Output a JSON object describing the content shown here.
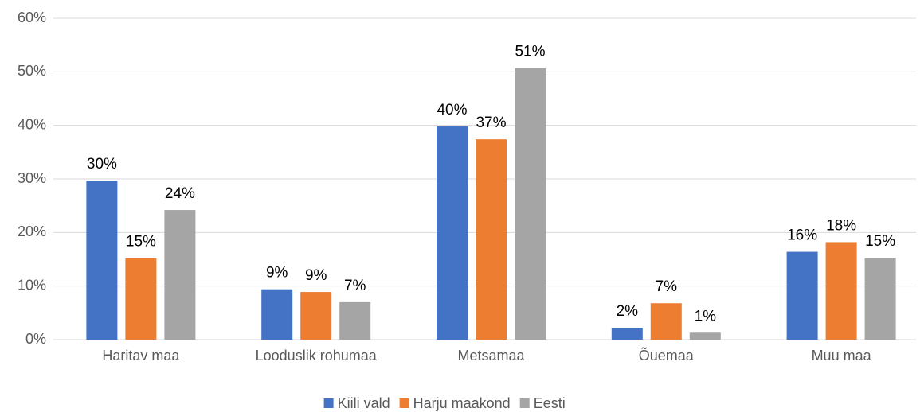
{
  "chart_data": {
    "type": "bar",
    "categories": [
      "Haritav maa",
      "Looduslik rohumaa",
      "Metsamaa",
      "Õuemaa",
      "Muu maa"
    ],
    "series": [
      {
        "name": "Kiili vald",
        "color": "#4472c4",
        "values": [
          29.7,
          9.4,
          39.8,
          2.2,
          16.4
        ],
        "value_labels": [
          "30%",
          "9%",
          "40%",
          "2%",
          "16%"
        ]
      },
      {
        "name": "Harju maakond",
        "color": "#ed7d31",
        "values": [
          15.2,
          8.9,
          37.4,
          6.8,
          18.2
        ],
        "value_labels": [
          "15%",
          "9%",
          "37%",
          "7%",
          "18%"
        ]
      },
      {
        "name": "Eesti",
        "color": "#a5a5a5",
        "values": [
          24.2,
          7.0,
          50.7,
          1.3,
          15.3
        ],
        "value_labels": [
          "24%",
          "7%",
          "51%",
          "1%",
          "15%"
        ]
      }
    ],
    "ylim": [
      0,
      60
    ],
    "yticks": [
      {
        "value": 0,
        "label": "0%"
      },
      {
        "value": 10,
        "label": "10%"
      },
      {
        "value": 20,
        "label": "20%"
      },
      {
        "value": 30,
        "label": "30%"
      },
      {
        "value": 40,
        "label": "40%"
      },
      {
        "value": 50,
        "label": "50%"
      },
      {
        "value": 60,
        "label": "60%"
      }
    ],
    "grid": true,
    "legend": "bottom"
  }
}
